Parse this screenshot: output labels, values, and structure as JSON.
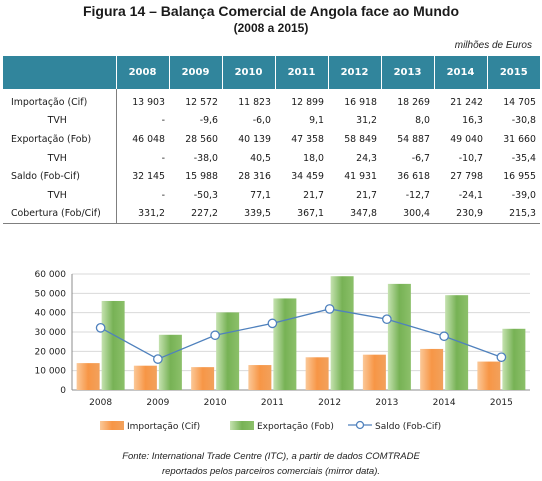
{
  "title": "Figura 14 – Balança Comercial de Angola face ao Mundo",
  "subtitle": "(2008 a 2015)",
  "unit": "milhões de Euros",
  "table": {
    "years": [
      "2008",
      "2009",
      "2010",
      "2011",
      "2012",
      "2013",
      "2014",
      "2015"
    ],
    "rows": [
      {
        "label": "Importação (Cif)",
        "values": [
          "13 903",
          "12 572",
          "11 823",
          "12 899",
          "16 918",
          "18 269",
          "21 242",
          "14 705"
        ]
      },
      {
        "label": "TVH",
        "values": [
          "-",
          "-9,6",
          "-6,0",
          "9,1",
          "31,2",
          "8,0",
          "16,3",
          "-30,8"
        ]
      },
      {
        "label": "Exportação (Fob)",
        "values": [
          "46 048",
          "28 560",
          "40 139",
          "47 358",
          "58 849",
          "54 887",
          "49 040",
          "31 660"
        ]
      },
      {
        "label": "TVH",
        "values": [
          "-",
          "-38,0",
          "40,5",
          "18,0",
          "24,3",
          "-6,7",
          "-10,7",
          "-35,4"
        ]
      },
      {
        "label": "Saldo (Fob-Cif)",
        "values": [
          "32 145",
          "15 988",
          "28 316",
          "34 459",
          "41 931",
          "36 618",
          "27 798",
          "16 955"
        ]
      },
      {
        "label": "TVH",
        "values": [
          "-",
          "-50,3",
          "77,1",
          "21,7",
          "21,7",
          "-12,7",
          "-24,1",
          "-39,0"
        ]
      },
      {
        "label": "Cobertura (Fob/Cif)",
        "values": [
          "331,2",
          "227,2",
          "339,5",
          "367,1",
          "347,8",
          "300,4",
          "230,9",
          "215,3"
        ]
      }
    ]
  },
  "chart_data": {
    "type": "bar",
    "categories": [
      "2008",
      "2009",
      "2010",
      "2011",
      "2012",
      "2013",
      "2014",
      "2015"
    ],
    "series": [
      {
        "name": "Importação (Cif)",
        "kind": "bar",
        "color": "#f79646",
        "values": [
          13903,
          12572,
          11823,
          12899,
          16918,
          18269,
          21242,
          14705
        ]
      },
      {
        "name": "Exportação (Fob)",
        "kind": "bar",
        "color": "#77b255",
        "values": [
          46048,
          28560,
          40139,
          47358,
          58849,
          54887,
          49040,
          31660
        ]
      },
      {
        "name": "Saldo (Fob-Cif)",
        "kind": "line",
        "color": "#4f81bd",
        "values": [
          32145,
          15988,
          28316,
          34459,
          41931,
          36618,
          27798,
          16955
        ]
      }
    ],
    "yticks": [
      "0",
      "10 000",
      "20 000",
      "30 000",
      "40 000",
      "50 000",
      "60 000"
    ],
    "ylim": [
      0,
      60000
    ],
    "grid": true,
    "legend": "bottom"
  },
  "source_line1": "Fonte: International Trade Centre (ITC), a partir de dados COMTRADE",
  "source_line2": "reportados pelos parceiros comerciais (mirror data)."
}
